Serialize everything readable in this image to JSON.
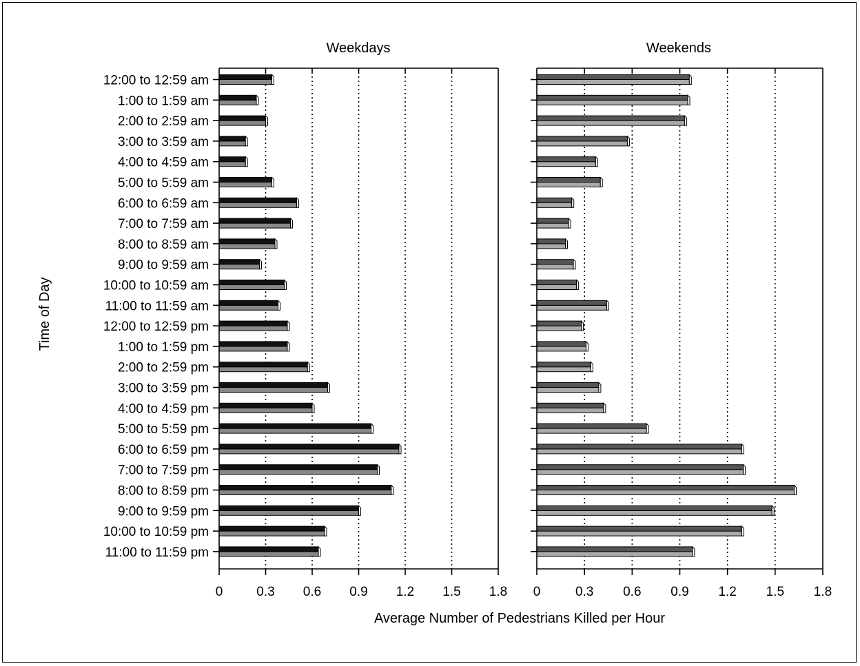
{
  "chart_data": {
    "type": "bar",
    "orientation": "horizontal",
    "xlabel": "Average Number of Pedestrians Killed per Hour",
    "ylabel": "Time of Day",
    "xlim": [
      0,
      1.8
    ],
    "xticks": [
      "0",
      "0.3",
      "0.6",
      "0.9",
      "1.2",
      "1.5",
      "1.8"
    ],
    "grid": "vertical dotted",
    "categories": [
      "12:00 to 12:59 am",
      "1:00 to 1:59 am",
      "2:00 to 2:59 am",
      "3:00 to 3:59 am",
      "4:00 to 4:59 am",
      "5:00 to 5:59 am",
      "6:00 to 6:59 am",
      "7:00 to 7:59 am",
      "8:00 to 8:59 am",
      "9:00 to 9:59 am",
      "10:00 to 10:59 am",
      "11:00 to 11:59 am",
      "12:00 to 12:59 pm",
      "1:00 to 1:59 pm",
      "2:00 to 2:59 pm",
      "3:00 to 3:59 pm",
      "4:00 to 4:59 pm",
      "5:00 to 5:59 pm",
      "6:00 to 6:59 pm",
      "7:00 to 7:59 pm",
      "8:00 to 8:59 pm",
      "9:00 to 9:59 pm",
      "10:00 to 10:59 pm",
      "11:00 to 11:59 pm"
    ],
    "panels": [
      {
        "title": "Weekdays",
        "bar_color": "#111111",
        "values": [
          0.34,
          0.24,
          0.3,
          0.17,
          0.17,
          0.34,
          0.5,
          0.46,
          0.36,
          0.26,
          0.42,
          0.38,
          0.44,
          0.44,
          0.57,
          0.7,
          0.6,
          0.98,
          1.16,
          1.02,
          1.11,
          0.9,
          0.68,
          0.64
        ]
      },
      {
        "title": "Weekends",
        "bar_color": "#555555",
        "values": [
          0.96,
          0.95,
          0.93,
          0.57,
          0.37,
          0.4,
          0.22,
          0.2,
          0.18,
          0.23,
          0.25,
          0.44,
          0.28,
          0.31,
          0.34,
          0.39,
          0.42,
          0.69,
          1.29,
          1.3,
          1.62,
          1.48,
          1.29,
          0.98
        ]
      }
    ]
  }
}
